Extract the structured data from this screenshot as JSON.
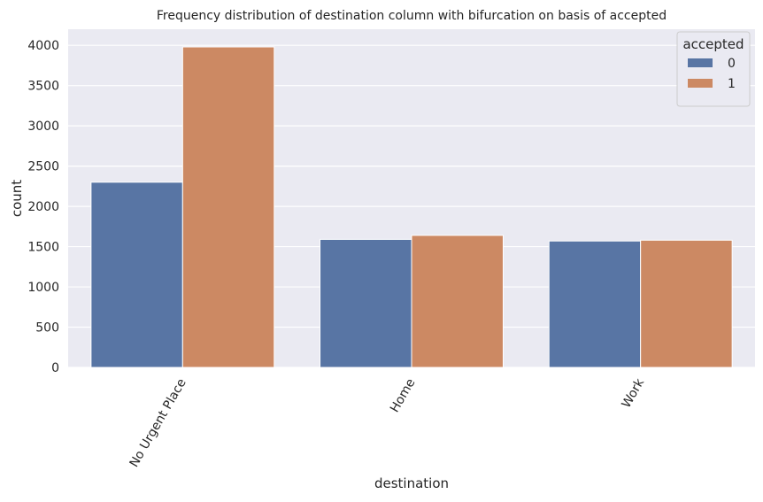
{
  "chart_data": {
    "type": "bar",
    "title": "Frequency distribution of destination column with bifurcation on basis of accepted",
    "xlabel": "destination",
    "ylabel": "count",
    "categories": [
      "No Urgent Place",
      "Home",
      "Work"
    ],
    "series": [
      {
        "name": "0",
        "values": [
          2300,
          1590,
          1570
        ]
      },
      {
        "name": "1",
        "values": [
          3980,
          1640,
          1580
        ]
      }
    ],
    "ylim": [
      0,
      4200
    ],
    "yticks": [
      0,
      500,
      1000,
      1500,
      2000,
      2500,
      3000,
      3500,
      4000
    ],
    "grid": true,
    "legend": {
      "title": "accepted",
      "placement": "top-right"
    },
    "colors": {
      "series_0": "#5875a4",
      "series_1": "#cc8963",
      "background": "#eaeaf2",
      "grid": "#ffffff"
    },
    "xtick_rotation": "60 degrees"
  }
}
